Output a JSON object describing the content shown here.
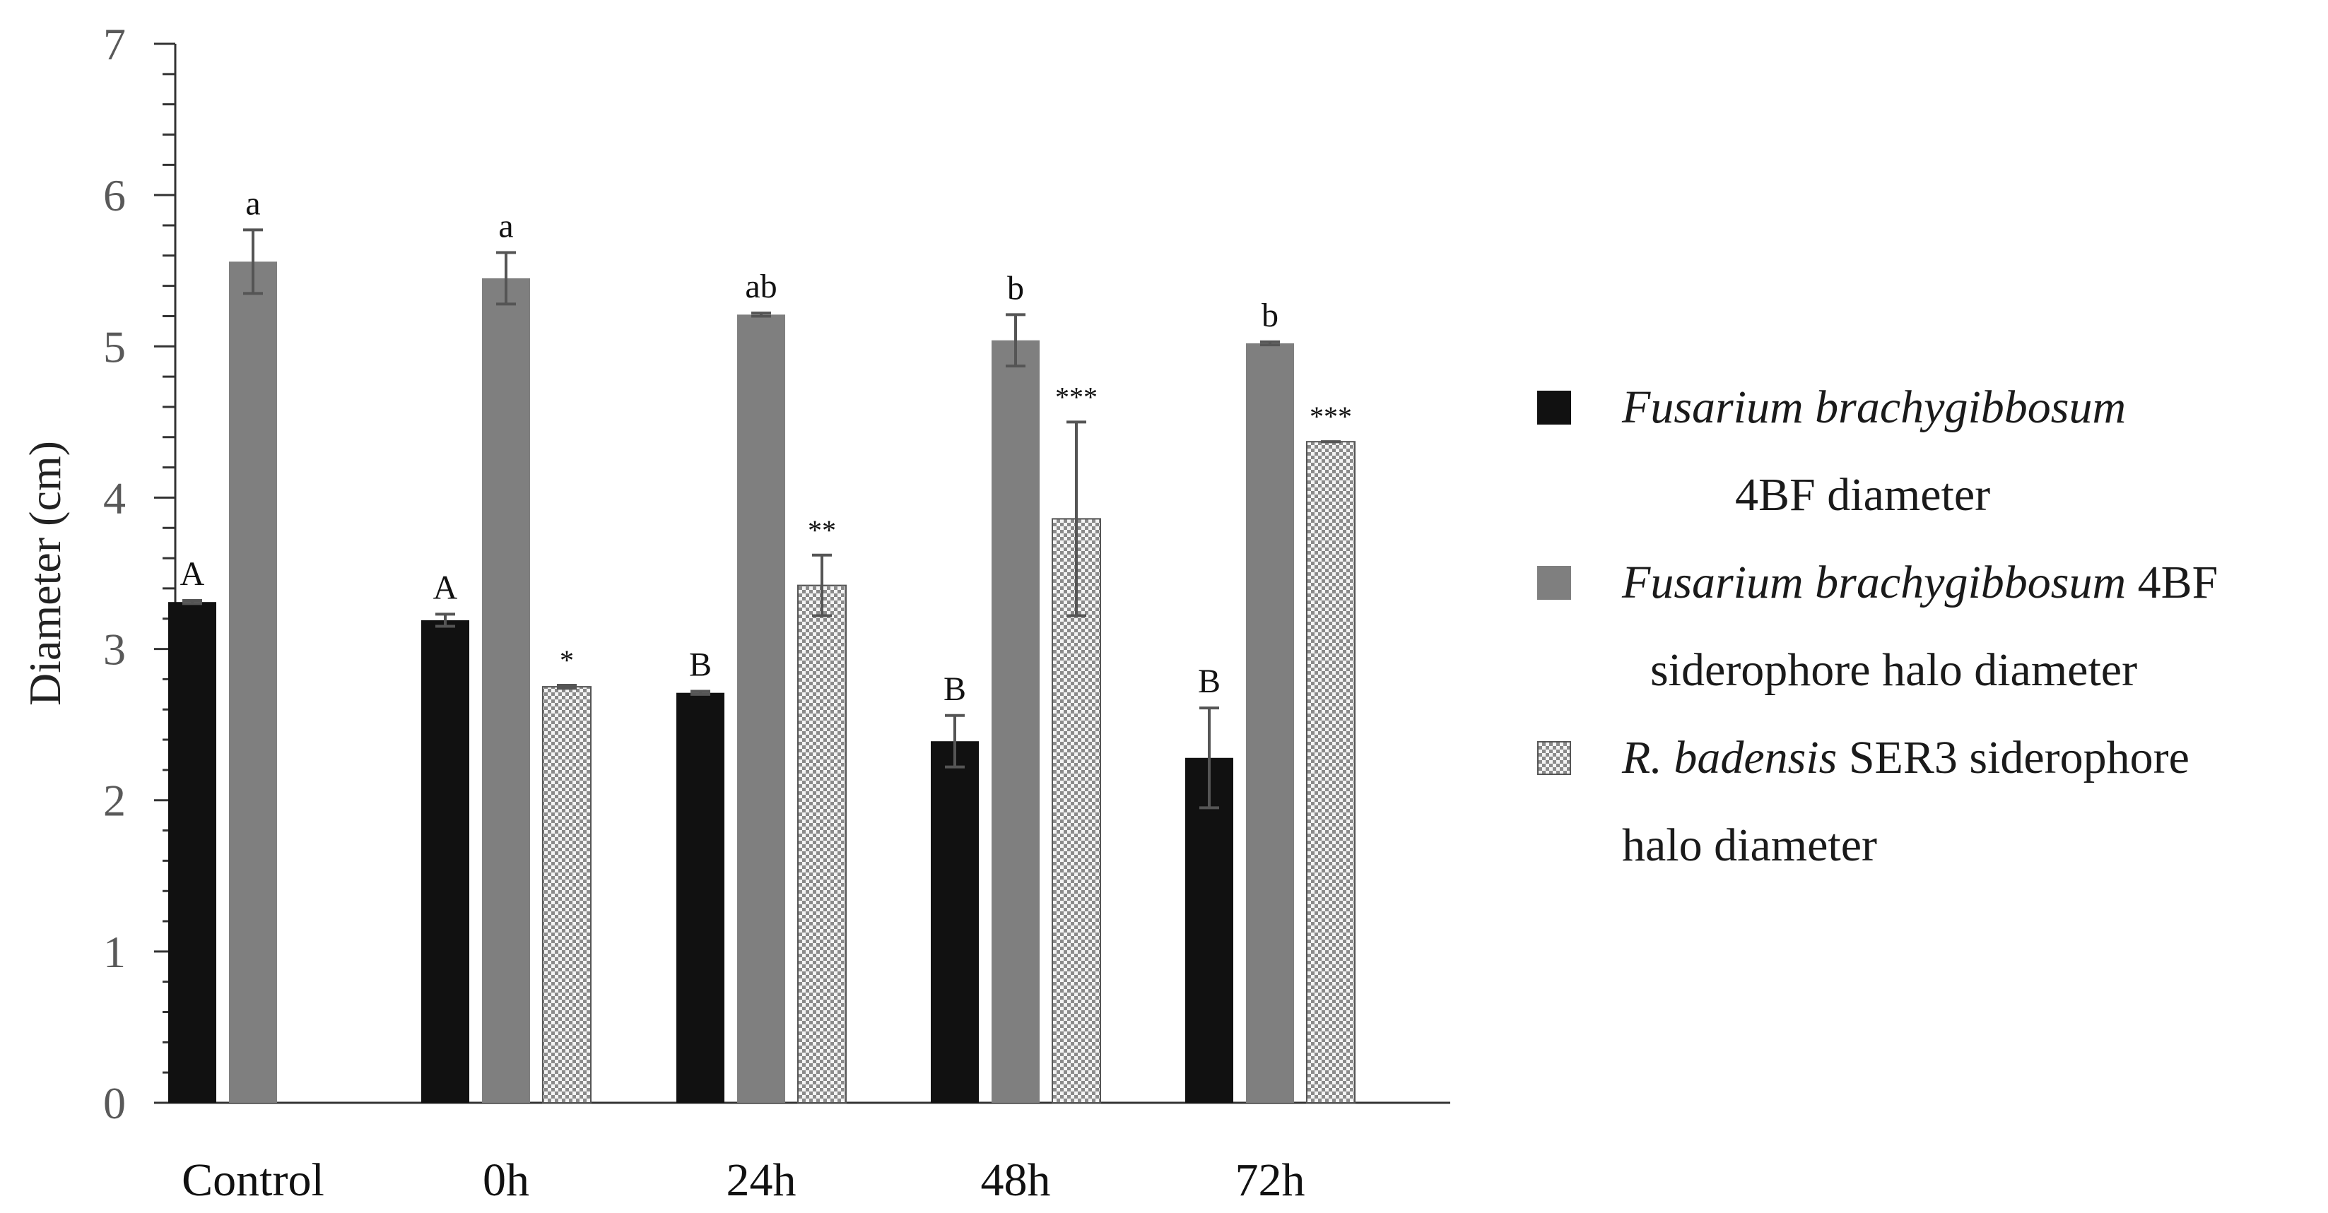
{
  "chart_data": {
    "type": "bar",
    "title": "",
    "xlabel": "",
    "ylabel": "Diameter (cm)",
    "ylim": [
      0,
      7
    ],
    "yticks": [
      "0",
      "1",
      "2",
      "3",
      "4",
      "5",
      "6",
      "7"
    ],
    "categories": [
      "Control",
      "0h",
      "24h",
      "48h",
      "72h"
    ],
    "series": [
      {
        "name": "Fusarium brachygibbosum 4BF diameter",
        "color": "#111111",
        "pattern": "solid",
        "values": [
          3.31,
          3.19,
          2.71,
          2.39,
          2.28
        ],
        "errors": [
          0.01,
          0.04,
          0.01,
          0.17,
          0.33
        ],
        "labels": [
          "A",
          "A",
          "B",
          "B",
          "B"
        ]
      },
      {
        "name": "Fusarium brachygibbosum 4BF siderophore halo diameter",
        "color": "#7f7f7f",
        "pattern": "solid",
        "values": [
          5.56,
          5.45,
          5.21,
          5.04,
          5.02
        ],
        "errors": [
          0.21,
          0.17,
          0.01,
          0.17,
          0.01
        ],
        "labels": [
          "a",
          "a",
          "ab",
          "b",
          "b"
        ]
      },
      {
        "name": "R. badensis SER3 siderophore halo diameter",
        "color": "#9a9a9a",
        "pattern": "checker",
        "values": [
          null,
          2.75,
          3.42,
          3.86,
          4.37
        ],
        "errors": [
          null,
          0.01,
          0.2,
          0.64,
          0.0
        ],
        "labels": [
          "",
          "*",
          "**",
          "***",
          "***"
        ]
      }
    ]
  },
  "legend": {
    "entry1": {
      "italic": "Fusarium brachygibbosum",
      "line2": "4BF diameter"
    },
    "entry2": {
      "italic": "Fusarium brachygibbosum",
      "rest1": " 4BF",
      "line2": "siderophore halo diameter"
    },
    "entry3": {
      "italic": "R. badensis",
      "rest1": " SER3 siderophore",
      "line2": "halo diameter"
    }
  }
}
